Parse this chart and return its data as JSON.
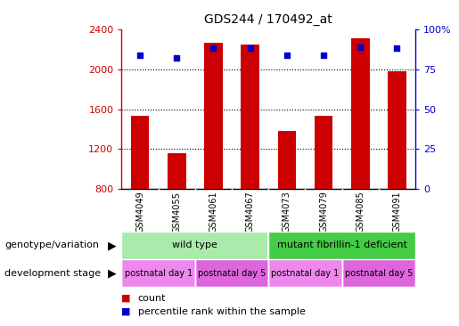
{
  "title": "GDS244 / 170492_at",
  "samples": [
    "GSM4049",
    "GSM4055",
    "GSM4061",
    "GSM4067",
    "GSM4073",
    "GSM4079",
    "GSM4085",
    "GSM4091"
  ],
  "counts": [
    1530,
    1160,
    2270,
    2250,
    1380,
    1530,
    2310,
    1980
  ],
  "percentiles": [
    84,
    82,
    88,
    88,
    84,
    84,
    89,
    88
  ],
  "ylim_left": [
    800,
    2400
  ],
  "ylim_right": [
    0,
    100
  ],
  "yticks_left": [
    800,
    1200,
    1600,
    2000,
    2400
  ],
  "yticks_right": [
    0,
    25,
    50,
    75,
    100
  ],
  "bar_color": "#cc0000",
  "dot_color": "#0000cc",
  "axis_left_color": "#cc0000",
  "axis_right_color": "#0000cc",
  "tick_label_area_bg": "#c0c0c0",
  "genotype_bg_wt": "#aaeaaa",
  "genotype_bg_mut": "#44cc44",
  "stage_bg_1": "#ee88ee",
  "stage_bg_2": "#dd66dd",
  "genotype_labels": [
    "wild type",
    "mutant fibrillin-1 deficient"
  ],
  "stage_labels": [
    "postnatal day 1",
    "postnatal day 5",
    "postnatal day 1",
    "postnatal day 5"
  ],
  "legend_count_color": "#cc0000",
  "legend_pct_color": "#0000cc",
  "genotype_text": "genotype/variation",
  "stage_text": "development stage"
}
